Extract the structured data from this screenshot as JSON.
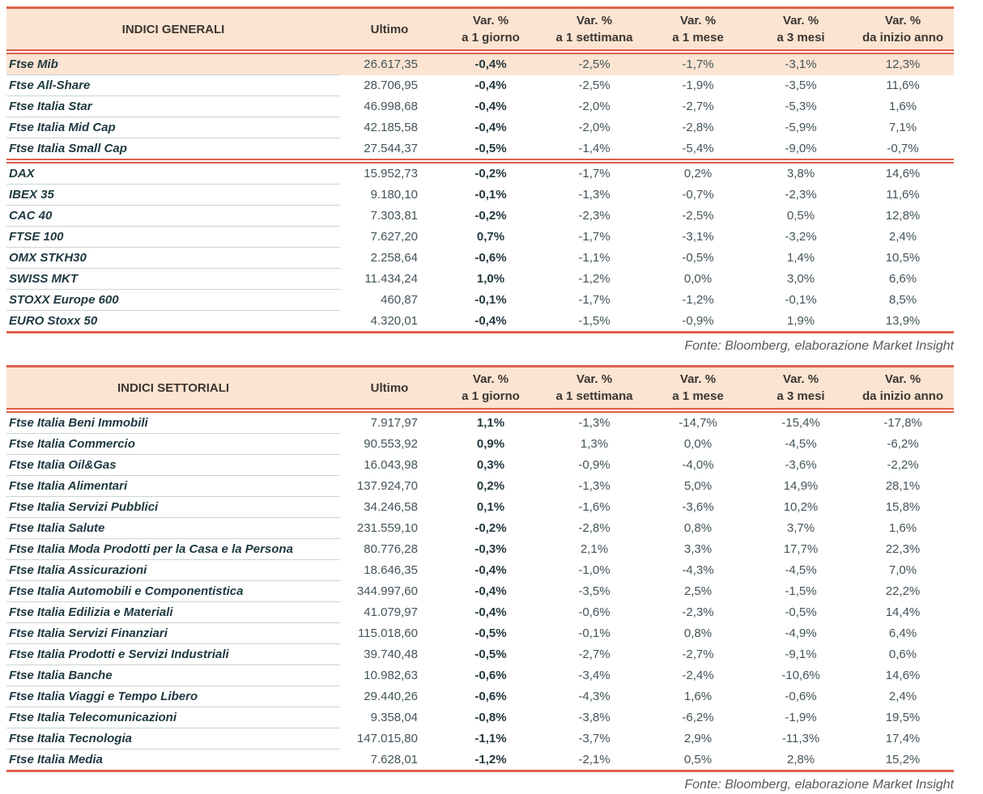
{
  "colors": {
    "header_bg": "#fbe4d2",
    "highlight_bg": "#fbe4d2",
    "rule_salmon": "#e0614b",
    "name_text": "#1e3940",
    "value_text": "#44545a",
    "source_text": "#595959",
    "row_separator": "#c9d4d7"
  },
  "columns": {
    "ultimo": "Ultimo",
    "var": "Var. %",
    "periods": [
      "a 1 giorno",
      "a 1 settimana",
      "a 1 mese",
      "a 3 mesi",
      "da inizio anno"
    ]
  },
  "tables": [
    {
      "title": "INDICI GENERALI",
      "source": "Fonte: Bloomberg, elaborazione Market Insight",
      "groups": [
        {
          "rows": [
            {
              "name": "Ftse Mib",
              "highlight": true,
              "values": [
                "26.617,35",
                "-0,4%",
                "-2,5%",
                "-1,7%",
                "-3,1%",
                "12,3%"
              ]
            },
            {
              "name": "Ftse All-Share",
              "values": [
                "28.706,95",
                "-0,4%",
                "-2,5%",
                "-1,9%",
                "-3,5%",
                "11,6%"
              ]
            },
            {
              "name": "Ftse Italia Star",
              "values": [
                "46.998,68",
                "-0,4%",
                "-2,0%",
                "-2,7%",
                "-5,3%",
                "1,6%"
              ]
            },
            {
              "name": "Ftse Italia Mid Cap",
              "values": [
                "42.185,58",
                "-0,4%",
                "-2,0%",
                "-2,8%",
                "-5,9%",
                "7,1%"
              ]
            },
            {
              "name": "Ftse Italia Small Cap",
              "values": [
                "27.544,37",
                "-0,5%",
                "-1,4%",
                "-5,4%",
                "-9,0%",
                "-0,7%"
              ]
            }
          ]
        },
        {
          "rows": [
            {
              "name": "DAX",
              "values": [
                "15.952,73",
                "-0,2%",
                "-1,7%",
                "0,2%",
                "3,8%",
                "14,6%"
              ]
            },
            {
              "name": "IBEX 35",
              "values": [
                "9.180,10",
                "-0,1%",
                "-1,3%",
                "-0,7%",
                "-2,3%",
                "11,6%"
              ]
            },
            {
              "name": "CAC 40",
              "values": [
                "7.303,81",
                "-0,2%",
                "-2,3%",
                "-2,5%",
                "0,5%",
                "12,8%"
              ]
            },
            {
              "name": "FTSE 100",
              "values": [
                "7.627,20",
                "0,7%",
                "-1,7%",
                "-3,1%",
                "-3,2%",
                "2,4%"
              ]
            },
            {
              "name": "OMX STKH30",
              "values": [
                "2.258,64",
                "-0,6%",
                "-1,1%",
                "-0,5%",
                "1,4%",
                "10,5%"
              ]
            },
            {
              "name": "SWISS MKT",
              "values": [
                "11.434,24",
                "1,0%",
                "-1,2%",
                "0,0%",
                "3,0%",
                "6,6%"
              ]
            },
            {
              "name": "STOXX Europe 600",
              "values": [
                "460,87",
                "-0,1%",
                "-1,7%",
                "-1,2%",
                "-0,1%",
                "8,5%"
              ]
            },
            {
              "name": "EURO Stoxx 50",
              "values": [
                "4.320,01",
                "-0,4%",
                "-1,5%",
                "-0,9%",
                "1,9%",
                "13,9%"
              ]
            }
          ]
        }
      ]
    },
    {
      "title": "INDICI SETTORIALI",
      "source": "Fonte: Bloomberg, elaborazione Market Insight",
      "groups": [
        {
          "rows": [
            {
              "name": "Ftse Italia Beni Immobili",
              "values": [
                "7.917,97",
                "1,1%",
                "-1,3%",
                "-14,7%",
                "-15,4%",
                "-17,8%"
              ]
            },
            {
              "name": "Ftse Italia Commercio",
              "values": [
                "90.553,92",
                "0,9%",
                "1,3%",
                "0,0%",
                "-4,5%",
                "-6,2%"
              ]
            },
            {
              "name": "Ftse Italia Oil&Gas",
              "values": [
                "16.043,98",
                "0,3%",
                "-0,9%",
                "-4,0%",
                "-3,6%",
                "-2,2%"
              ]
            },
            {
              "name": "Ftse Italia Alimentari",
              "values": [
                "137.924,70",
                "0,2%",
                "-1,3%",
                "5,0%",
                "14,9%",
                "28,1%"
              ]
            },
            {
              "name": "Ftse Italia Servizi Pubblici",
              "values": [
                "34.246,58",
                "0,1%",
                "-1,6%",
                "-3,6%",
                "10,2%",
                "15,8%"
              ]
            },
            {
              "name": "Ftse Italia Salute",
              "values": [
                "231.559,10",
                "-0,2%",
                "-2,8%",
                "0,8%",
                "3,7%",
                "1,6%"
              ]
            },
            {
              "name": "Ftse Italia Moda Prodotti per la Casa e la Persona",
              "values": [
                "80.776,28",
                "-0,3%",
                "2,1%",
                "3,3%",
                "17,7%",
                "22,3%"
              ]
            },
            {
              "name": "Ftse Italia Assicurazioni",
              "values": [
                "18.646,35",
                "-0,4%",
                "-1,0%",
                "-4,3%",
                "-4,5%",
                "7,0%"
              ]
            },
            {
              "name": "Ftse Italia Automobili e Componentistica",
              "values": [
                "344.997,60",
                "-0,4%",
                "-3,5%",
                "2,5%",
                "-1,5%",
                "22,2%"
              ]
            },
            {
              "name": "Ftse Italia Edilizia e Materiali",
              "values": [
                "41.079,97",
                "-0,4%",
                "-0,6%",
                "-2,3%",
                "-0,5%",
                "14,4%"
              ]
            },
            {
              "name": "Ftse Italia Servizi Finanziari",
              "values": [
                "115.018,60",
                "-0,5%",
                "-0,1%",
                "0,8%",
                "-4,9%",
                "6,4%"
              ]
            },
            {
              "name": "Ftse Italia Prodotti e Servizi Industriali",
              "values": [
                "39.740,48",
                "-0,5%",
                "-2,7%",
                "-2,7%",
                "-9,1%",
                "0,6%"
              ]
            },
            {
              "name": "Ftse Italia Banche",
              "values": [
                "10.982,63",
                "-0,6%",
                "-3,4%",
                "-2,4%",
                "-10,6%",
                "14,6%"
              ]
            },
            {
              "name": "Ftse Italia Viaggi e Tempo Libero",
              "values": [
                "29.440,26",
                "-0,6%",
                "-4,3%",
                "1,6%",
                "-0,6%",
                "2,4%"
              ]
            },
            {
              "name": "Ftse Italia Telecomunicazioni",
              "values": [
                "9.358,04",
                "-0,8%",
                "-3,8%",
                "-6,2%",
                "-1,9%",
                "19,5%"
              ]
            },
            {
              "name": "Ftse Italia Tecnologia",
              "values": [
                "147.015,80",
                "-1,1%",
                "-3,7%",
                "2,9%",
                "-11,3%",
                "17,4%"
              ]
            },
            {
              "name": "Ftse Italia Media",
              "values": [
                "7.628,01",
                "-1,2%",
                "-2,1%",
                "0,5%",
                "2,8%",
                "15,2%"
              ]
            }
          ]
        }
      ]
    }
  ]
}
